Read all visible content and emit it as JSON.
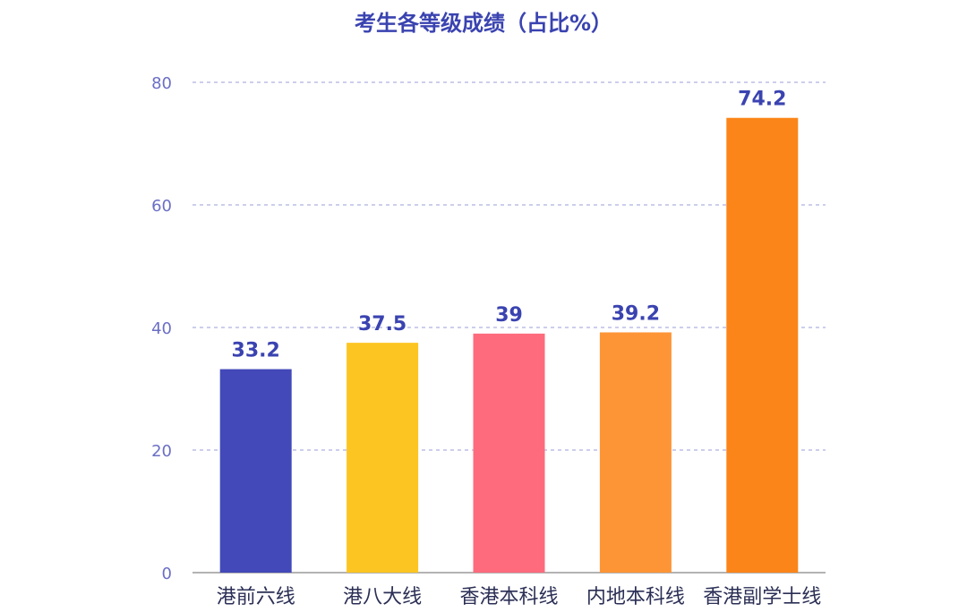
{
  "chart_data": {
    "type": "bar",
    "title": "考生各等级成绩（占比%）",
    "categories": [
      "港前六线",
      "港八大线",
      "香港本科线",
      "内地本科线",
      "香港副学士线"
    ],
    "values": [
      33.2,
      37.5,
      39,
      39.2,
      74.2
    ],
    "value_labels": [
      "33.2",
      "37.5",
      "39",
      "39.2",
      "74.2"
    ],
    "bar_colors": [
      "#4349b8",
      "#fdc521",
      "#fd6b7d",
      "#fd9537",
      "#fb8519"
    ],
    "ylim": [
      0,
      80
    ],
    "yticks": [
      0,
      20,
      40,
      60,
      80
    ],
    "xlabel": "",
    "ylabel": "",
    "grid": true,
    "colors": {
      "title": "#3a43b0",
      "value_label": "#3a43b0",
      "tick": "#6b6fc4",
      "grid": "#9a9ed8",
      "axis": "#9a9a9a",
      "category": "#2b2f55"
    }
  }
}
